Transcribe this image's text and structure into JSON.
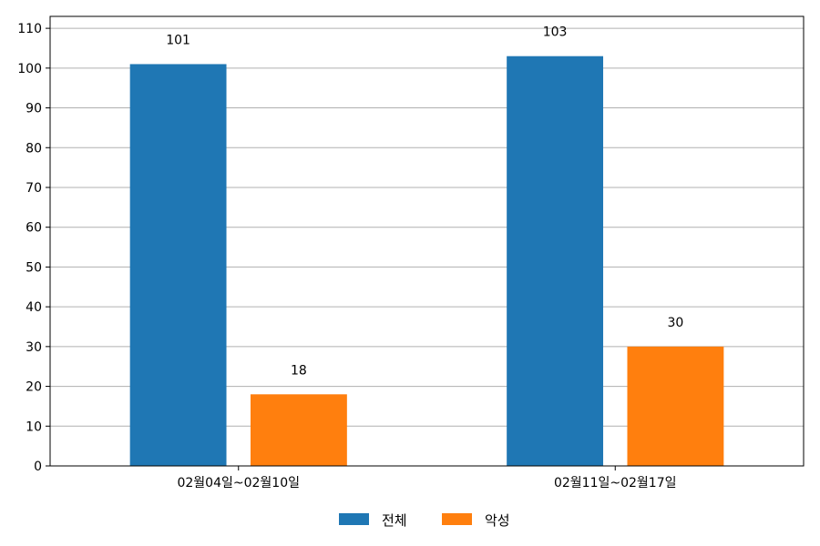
{
  "chart_data": {
    "type": "bar",
    "categories": [
      "02월04일~02월10일",
      "02월11일~02월17일"
    ],
    "series": [
      {
        "name": "전체",
        "values": [
          101,
          103
        ],
        "color": "#1f77b4"
      },
      {
        "name": "악성",
        "values": [
          18,
          30
        ],
        "color": "#ff7f0e"
      }
    ],
    "ylim": [
      0,
      113
    ],
    "yticks": [
      0,
      10,
      20,
      30,
      40,
      50,
      60,
      70,
      80,
      90,
      100,
      110
    ],
    "grid": true,
    "legend_position": "bottom-center",
    "data_labels": true
  }
}
